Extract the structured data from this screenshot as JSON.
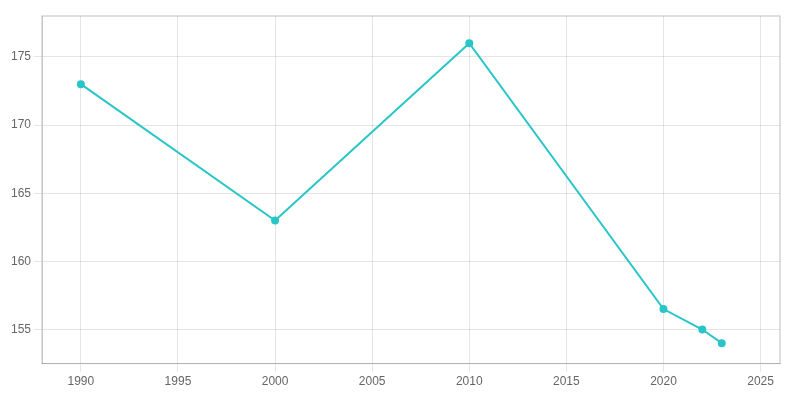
{
  "chart_data": {
    "type": "line",
    "x": [
      1990,
      2000,
      2010,
      2020,
      2022,
      2023
    ],
    "values": [
      173,
      163,
      176,
      156.5,
      155,
      154
    ],
    "color": "#29C5C8",
    "marker": "circle",
    "xlim": [
      1988,
      2026
    ],
    "xticks": [
      1990,
      1995,
      2000,
      2005,
      2010,
      2015,
      2020,
      2025
    ],
    "ylim": [
      152.5,
      178
    ],
    "yticks": [
      155,
      160,
      165,
      170,
      175
    ],
    "grid": true
  }
}
